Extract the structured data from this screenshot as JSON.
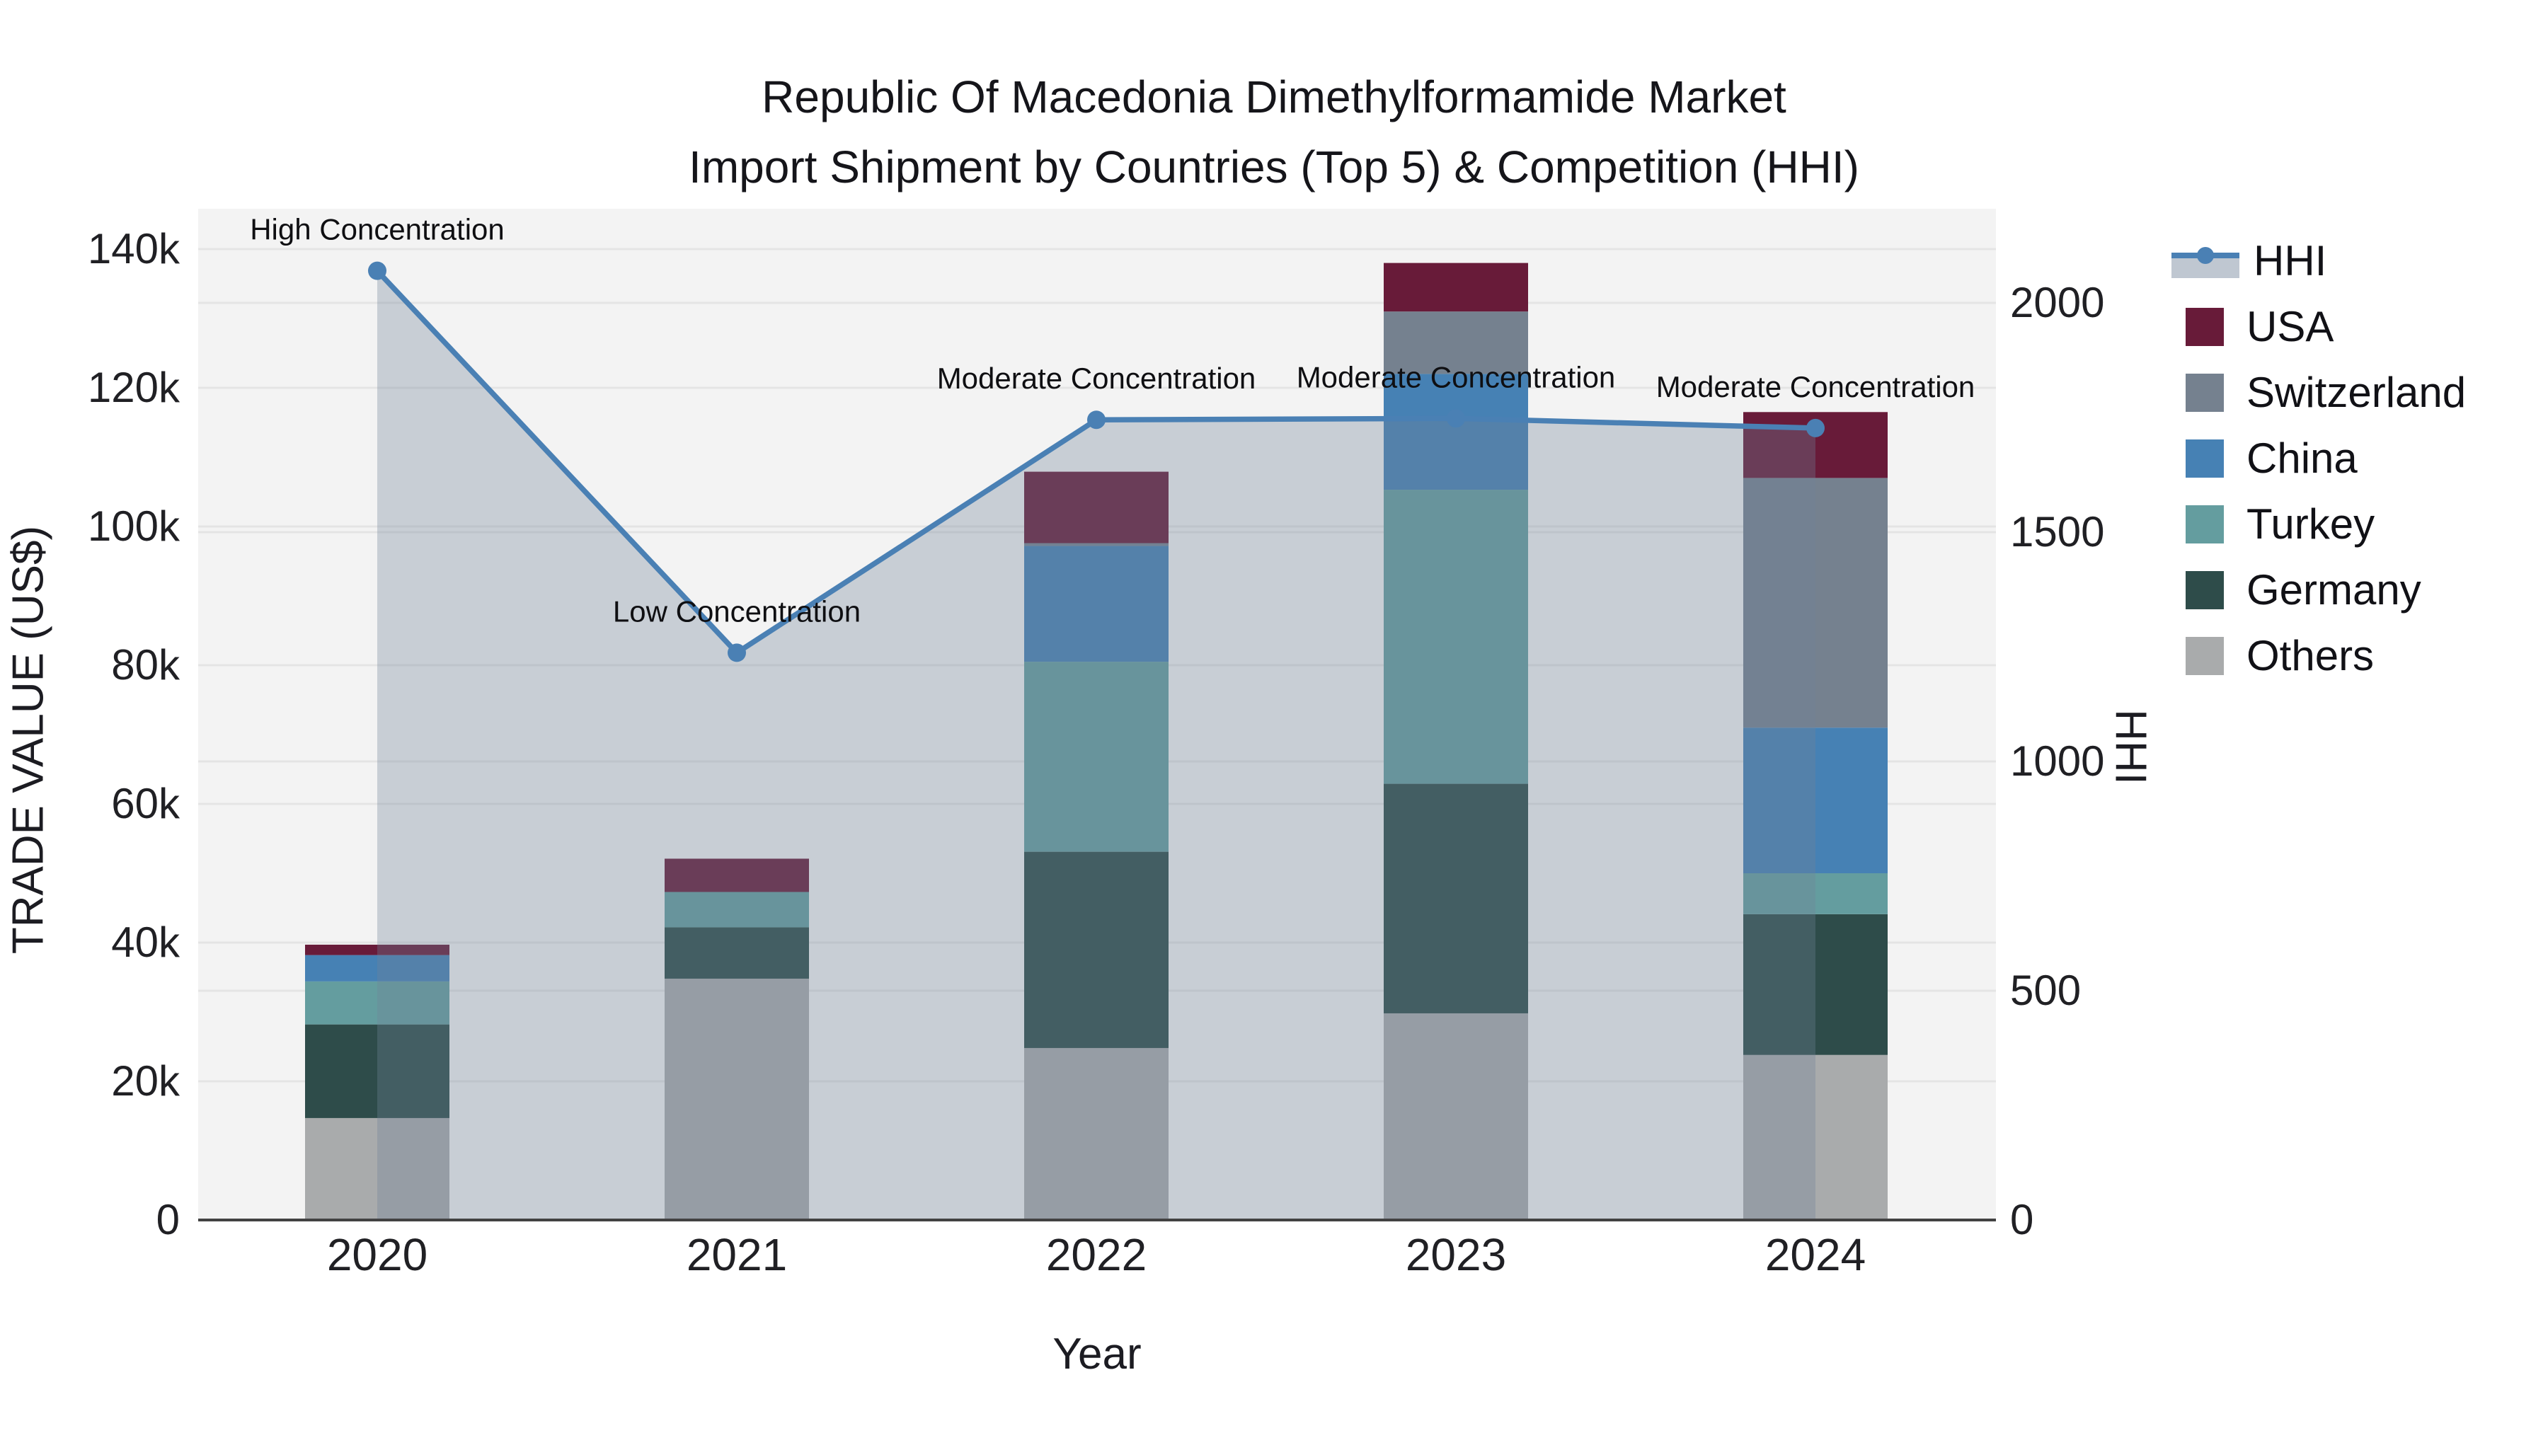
{
  "title": {
    "line1": "Republic Of Macedonia Dimethylformamide Market",
    "line2": "Import Shipment by Countries (Top 5) & Competition (HHI)"
  },
  "axes": {
    "x_title": "Year",
    "y_left_title": "TRADE VALUE (US$)",
    "y_right_title": "HHI",
    "y_left_ticks": [
      {
        "value": 0,
        "label": "0"
      },
      {
        "value": 20000,
        "label": "20k"
      },
      {
        "value": 40000,
        "label": "40k"
      },
      {
        "value": 60000,
        "label": "60k"
      },
      {
        "value": 80000,
        "label": "80k"
      },
      {
        "value": 100000,
        "label": "100k"
      },
      {
        "value": 120000,
        "label": "120k"
      },
      {
        "value": 140000,
        "label": "140k"
      }
    ],
    "y_right_ticks": [
      {
        "value": 0,
        "label": "0"
      },
      {
        "value": 500,
        "label": "500"
      },
      {
        "value": 1000,
        "label": "1000"
      },
      {
        "value": 1500,
        "label": "1500"
      },
      {
        "value": 2000,
        "label": "2000"
      }
    ]
  },
  "chart_data": {
    "type": "bar",
    "subtype": "stacked-bars-with-secondary-axis-line",
    "categories": [
      "2020",
      "2021",
      "2022",
      "2023",
      "2024"
    ],
    "bar_value_unit": "US$",
    "ylabel_left": "TRADE VALUE (US$)",
    "ylabel_right": "HHI",
    "ylim_left": [
      0,
      145800
    ],
    "ylim_right": [
      0,
      2205
    ],
    "grid": true,
    "legend_position": "right",
    "series": [
      {
        "name": "USA",
        "color": "#681b39",
        "values": [
          1500,
          4800,
          10300,
          7000,
          9500
        ]
      },
      {
        "name": "Switzerland",
        "color": "#75818f",
        "values": [
          0,
          0,
          400,
          9000,
          36000
        ]
      },
      {
        "name": "China",
        "color": "#4681b4",
        "values": [
          3800,
          0,
          16700,
          16700,
          21000
        ]
      },
      {
        "name": "Turkey",
        "color": "#649d9f",
        "values": [
          6200,
          5100,
          27400,
          42400,
          5900
        ]
      },
      {
        "name": "Germany",
        "color": "#2e4c4a",
        "values": [
          13500,
          7400,
          28300,
          33100,
          20300
        ]
      },
      {
        "name": "Others",
        "color": "#a9abac",
        "values": [
          14700,
          34800,
          24800,
          29800,
          23800
        ]
      }
    ],
    "stack_totals": [
      39700,
      52100,
      107900,
      138000,
      116500
    ],
    "hhi_line": {
      "name": "HHI",
      "color": "#4a80b4",
      "area_fill": "rgba(112,130,152,0.33)",
      "values": [
        2070,
        1237,
        1745,
        1748,
        1727
      ]
    },
    "annotations": [
      {
        "category": "2020",
        "text": "High Concentration"
      },
      {
        "category": "2021",
        "text": "Low Concentration"
      },
      {
        "category": "2022",
        "text": "Moderate Concentration"
      },
      {
        "category": "2023",
        "text": "Moderate Concentration"
      },
      {
        "category": "2024",
        "text": "Moderate Concentration"
      }
    ]
  },
  "legend": {
    "items": [
      {
        "label": "HHI",
        "type": "line"
      },
      {
        "label": "USA",
        "type": "swatch",
        "color": "#681b39"
      },
      {
        "label": "Switzerland",
        "type": "swatch",
        "color": "#75818f"
      },
      {
        "label": "China",
        "type": "swatch",
        "color": "#4681b4"
      },
      {
        "label": "Turkey",
        "type": "swatch",
        "color": "#649d9f"
      },
      {
        "label": "Germany",
        "type": "swatch",
        "color": "#2e4c4a"
      },
      {
        "label": "Others",
        "type": "swatch",
        "color": "#a9abac"
      }
    ]
  },
  "colors": {
    "plot_background": "#f3f3f3",
    "gridline": "#e4e4e4",
    "axis_line": "#424242",
    "tick_label": "#202024",
    "annotation_text": "#0f0f12"
  }
}
